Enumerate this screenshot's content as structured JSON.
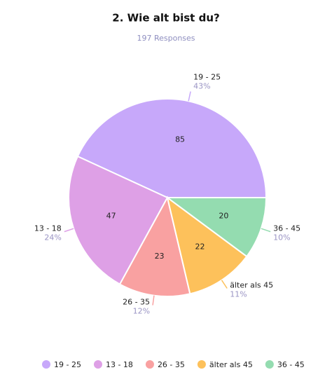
{
  "chart_data": {
    "type": "pie",
    "title": "2. Wie alt bist du?",
    "subtitle": "197 Responses",
    "categories": [
      "19 - 25",
      "13 - 18",
      "26 - 35",
      "älter als 45",
      "36 - 45"
    ],
    "values": [
      85,
      47,
      23,
      22,
      20
    ],
    "percent_labels": [
      "43%",
      "24%",
      "12%",
      "11%",
      "10%"
    ],
    "colors": [
      "#c7a8fa",
      "#dea0e6",
      "#f9a1a1",
      "#fdc15b",
      "#94dcb0"
    ]
  }
}
